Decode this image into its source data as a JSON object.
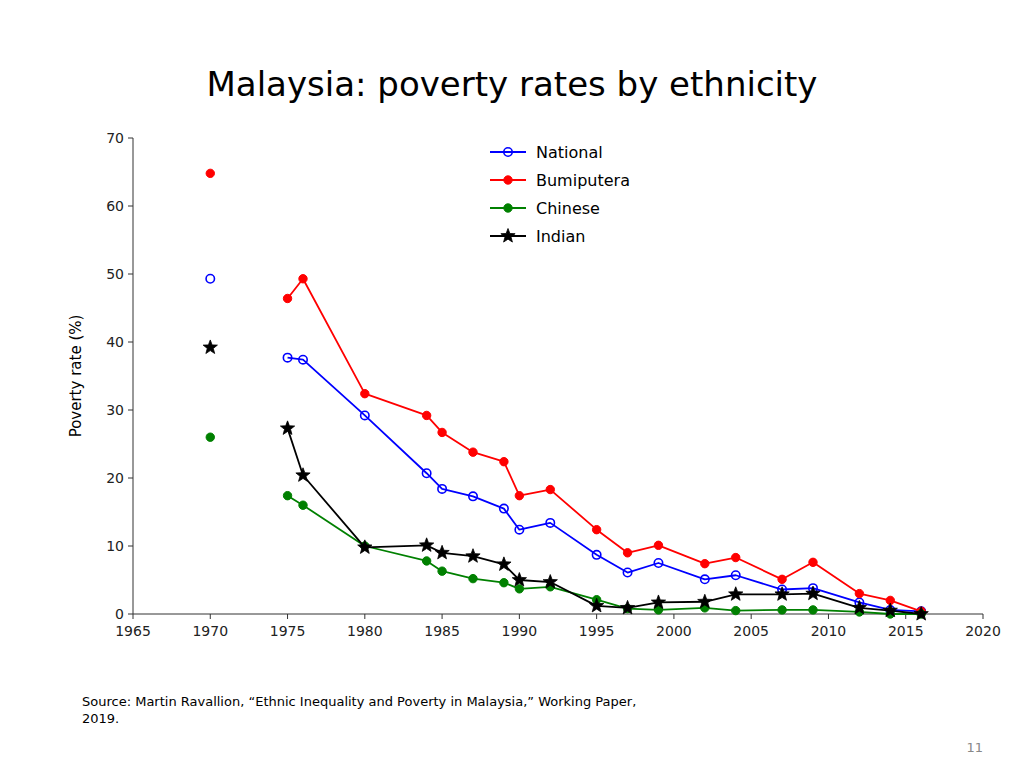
{
  "chart_data": {
    "type": "line",
    "title": "Malaysia: poverty rates by ethnicity",
    "y_label": "Poverty rate (%)",
    "source": "Source: Martin Ravallion, “Ethnic Inequality and Poverty in Malaysia,” Working Paper,\n2019.",
    "page_number": "11",
    "x": [
      1970,
      null,
      1975,
      1976,
      1980,
      1984,
      1985,
      1987,
      1989,
      1990,
      1992,
      1995,
      1997,
      1999,
      2002,
      2004,
      2007,
      2009,
      2012,
      2014,
      2016
    ],
    "xlim": [
      1965,
      2020
    ],
    "xticks": [
      1965,
      1970,
      1975,
      1980,
      1985,
      1990,
      1995,
      2000,
      2005,
      2010,
      2015,
      2020
    ],
    "ylim": [
      0,
      70
    ],
    "yticks": [
      0,
      10,
      20,
      30,
      40,
      50,
      60,
      70
    ],
    "grid": false,
    "legend": "upper center",
    "series": [
      {
        "name": "National",
        "color": "#0000ff",
        "marker": "circle-open",
        "values": [
          49.3,
          null,
          37.7,
          37.4,
          29.2,
          20.7,
          18.4,
          17.3,
          15.5,
          12.4,
          13.4,
          8.7,
          6.1,
          7.5,
          5.1,
          5.7,
          3.6,
          3.8,
          1.7,
          0.6,
          0.4
        ]
      },
      {
        "name": "Bumiputera",
        "color": "#ff0000",
        "marker": "circle",
        "values": [
          64.8,
          null,
          46.4,
          49.3,
          32.4,
          29.2,
          26.7,
          23.8,
          22.4,
          17.4,
          18.3,
          12.4,
          9.0,
          10.1,
          7.4,
          8.3,
          5.1,
          7.6,
          3.0,
          2.0,
          0.4
        ]
      },
      {
        "name": "Chinese",
        "color": "#008000",
        "marker": "circle",
        "values": [
          26.0,
          null,
          17.4,
          16.0,
          10.0,
          7.8,
          6.3,
          5.2,
          4.6,
          3.7,
          4.0,
          2.1,
          0.8,
          0.6,
          0.9,
          0.5,
          0.6,
          0.6,
          0.3,
          0.0,
          0.0
        ]
      },
      {
        "name": "Indian",
        "color": "#000000",
        "marker": "star",
        "values": [
          39.2,
          null,
          27.3,
          20.4,
          9.8,
          10.1,
          9.0,
          8.5,
          7.3,
          5.0,
          4.7,
          1.2,
          0.9,
          1.7,
          1.8,
          2.9,
          2.9,
          3.0,
          0.9,
          0.5,
          0.0
        ]
      }
    ]
  }
}
